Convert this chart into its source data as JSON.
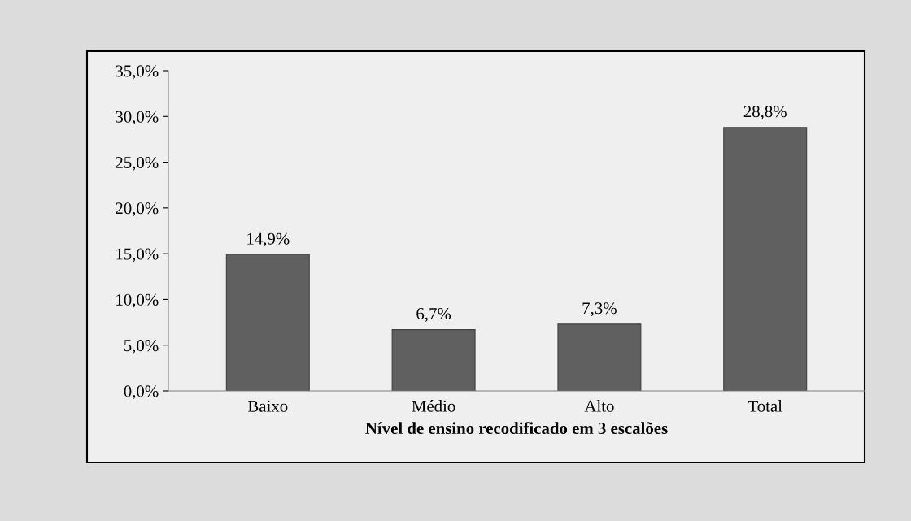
{
  "chart_data": {
    "type": "bar",
    "xlabel": "Nível de ensino recodificado em 3 escalões",
    "categories": [
      "Baixo",
      "Médio",
      "Alto",
      "Total"
    ],
    "values": [
      14.9,
      6.7,
      7.3,
      28.8
    ],
    "value_labels": [
      "14,9%",
      "6,7%",
      "7,3%",
      "28,8%"
    ],
    "color": "#606060",
    "ylim": [
      0,
      35
    ],
    "yticks": [
      {
        "value": 0,
        "label": "0,0%"
      },
      {
        "value": 5,
        "label": "5,0%"
      },
      {
        "value": 10,
        "label": "10,0%"
      },
      {
        "value": 15,
        "label": "15,0%"
      },
      {
        "value": 20,
        "label": "20,0%"
      },
      {
        "value": 25,
        "label": "25,0%"
      },
      {
        "value": 30,
        "label": "30,0%"
      },
      {
        "value": 35,
        "label": "35,0%"
      }
    ],
    "grid": false,
    "legend": false
  }
}
